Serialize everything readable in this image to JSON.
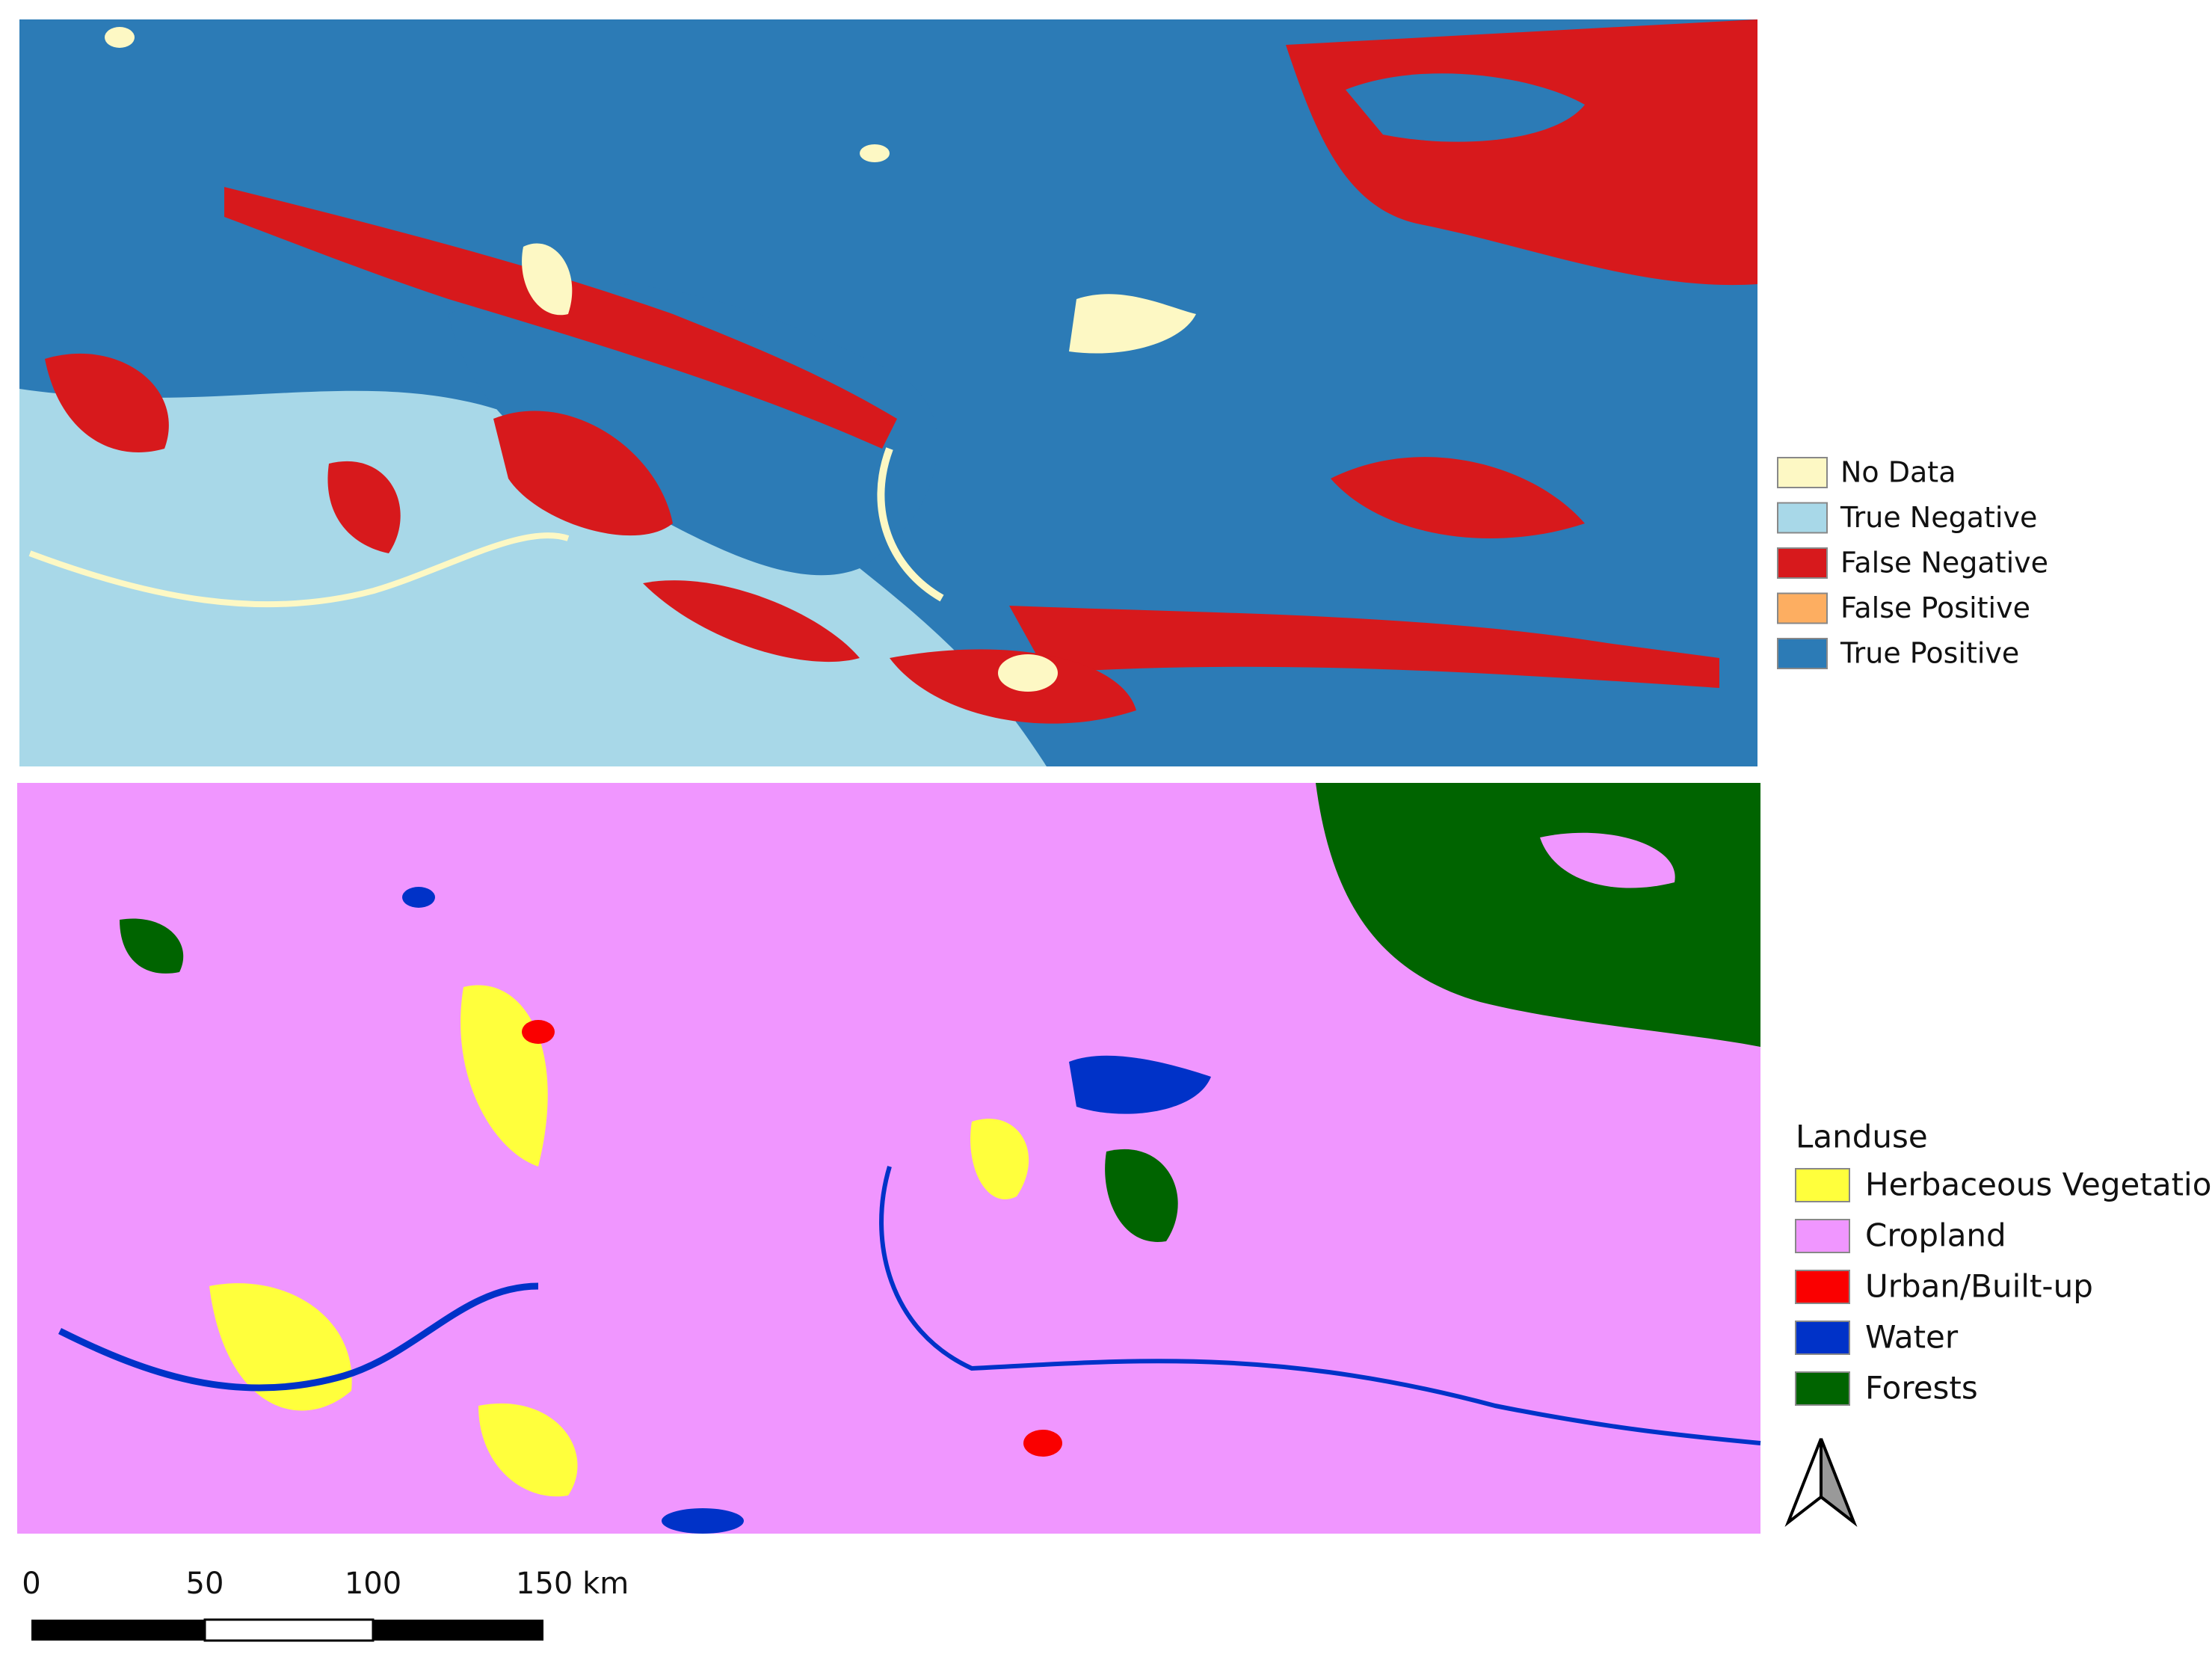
{
  "legend_top": {
    "items": [
      {
        "label": "No Data",
        "color": "#fdf8c4"
      },
      {
        "label": "True Negative",
        "color": "#a8d8e8"
      },
      {
        "label": "False Negative",
        "color": "#d7191c"
      },
      {
        "label": "False Positive",
        "color": "#fdae61"
      },
      {
        "label": "True Positive",
        "color": "#2c7bb6"
      }
    ]
  },
  "legend_bottom": {
    "title": "Landuse",
    "items": [
      {
        "label": "Herbaceous Vegetation",
        "color": "#ffff3c"
      },
      {
        "label": "Cropland",
        "color": "#f096ff"
      },
      {
        "label": "Urban/Built-up",
        "color": "#fa0000"
      },
      {
        "label": "Water",
        "color": "#0032c8"
      },
      {
        "label": "Forests",
        "color": "#006400"
      }
    ]
  },
  "scale_bar": {
    "labels": [
      "0",
      "50",
      "100",
      "150 km"
    ]
  }
}
